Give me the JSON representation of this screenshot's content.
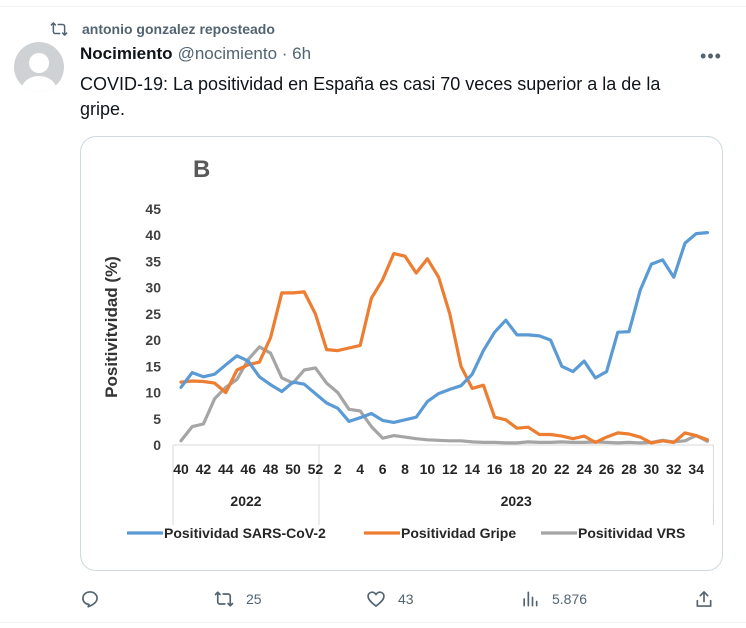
{
  "repost": {
    "label": "antonio gonzalez reposteado",
    "icon": "repost-icon"
  },
  "author": {
    "name": "Nocimiento",
    "handle_time": "@nocimiento · 6h"
  },
  "more_icon": "more-icon",
  "tweet_text": "COVID-19: La positividad en España es casi 70 veces superior a la de la gripe.",
  "actions": {
    "reply": {
      "icon": "reply-icon",
      "count": ""
    },
    "repost": {
      "icon": "repost-icon",
      "count": "25"
    },
    "like": {
      "icon": "heart-icon",
      "count": "43"
    },
    "views": {
      "icon": "views-icon",
      "count": "5.876"
    },
    "share": {
      "icon": "share-icon"
    }
  },
  "colors": {
    "sars": "#5b9bd5",
    "gripe": "#ed7d31",
    "vrs": "#a5a5a5",
    "muted": "#536471"
  },
  "chart_data": {
    "type": "line",
    "panel_label": "B",
    "ylabel": "Positivitvidad (%)",
    "ylim": [
      0,
      45
    ],
    "yticks": [
      "0",
      "5",
      "10",
      "15",
      "20",
      "25",
      "30",
      "35",
      "40",
      "45"
    ],
    "xtick_labels": [
      "40",
      "42",
      "44",
      "46",
      "48",
      "50",
      "52",
      "2",
      "4",
      "6",
      "8",
      "10",
      "12",
      "14",
      "16",
      "18",
      "20",
      "22",
      "24",
      "26",
      "28",
      "30",
      "32",
      "34"
    ],
    "year_groups": [
      {
        "label": "2022",
        "weeks": "40-52"
      },
      {
        "label": "2023",
        "weeks": "1-35"
      }
    ],
    "x": [
      "40",
      "41",
      "42",
      "43",
      "44",
      "45",
      "46",
      "47",
      "48",
      "49",
      "50",
      "51",
      "52",
      "1",
      "2",
      "3",
      "4",
      "5",
      "6",
      "7",
      "8",
      "9",
      "10",
      "11",
      "12",
      "13",
      "14",
      "15",
      "16",
      "17",
      "18",
      "19",
      "20",
      "21",
      "22",
      "23",
      "24",
      "25",
      "26",
      "27",
      "28",
      "29",
      "30",
      "31",
      "32",
      "33",
      "34",
      "35"
    ],
    "series": [
      {
        "name": "Positividad SARS-CoV-2",
        "color": "#5b9bd5",
        "values": [
          11,
          13.8,
          13,
          13.5,
          15.3,
          17,
          16,
          13,
          11.5,
          10.2,
          12,
          11.6,
          9.8,
          8,
          7,
          4.5,
          5.2,
          6,
          4.7,
          4.3,
          4.8,
          5.3,
          8.3,
          9.8,
          10.6,
          11.3,
          13.5,
          18,
          21.5,
          23.8,
          21,
          21,
          20.8,
          20,
          15,
          14,
          16,
          12.8,
          14,
          21.5,
          21.6,
          29.5,
          34.5,
          35.3,
          32,
          38.5,
          40.3,
          40.5
        ]
      },
      {
        "name": "Positividad Gripe",
        "color": "#ed7d31",
        "values": [
          12,
          12.2,
          12.1,
          11.8,
          10,
          14.3,
          15.3,
          15.8,
          20.5,
          29,
          29,
          29.2,
          25,
          18.2,
          18,
          18.5,
          19,
          28,
          31.5,
          36.5,
          36,
          32.8,
          35.5,
          32,
          25,
          15,
          10.8,
          11.4,
          5.3,
          4.8,
          3.2,
          3.4,
          2,
          2,
          1.7,
          1.2,
          1.7,
          0.5,
          1.5,
          2.3,
          2.1,
          1.5,
          0.4,
          0.8,
          0.5,
          2.3,
          1.8,
          1
        ]
      },
      {
        "name": "Positividad VRS",
        "color": "#a5a5a5",
        "values": [
          0.8,
          3.5,
          4,
          8.8,
          11,
          12.5,
          16.3,
          18.7,
          17.5,
          12.8,
          11.8,
          14.3,
          14.7,
          11.8,
          10,
          6.8,
          6.5,
          3.5,
          1.3,
          1.8,
          1.5,
          1.2,
          1,
          0.9,
          0.8,
          0.8,
          0.6,
          0.5,
          0.5,
          0.4,
          0.4,
          0.6,
          0.5,
          0.5,
          0.6,
          0.5,
          0.5,
          0.6,
          0.5,
          0.4,
          0.5,
          0.4,
          0.5,
          0.9,
          0.6,
          0.8,
          1.8,
          0.7
        ]
      }
    ],
    "legend": [
      "Positividad SARS-CoV-2",
      "Positividad Gripe",
      "Positividad VRS"
    ],
    "legend_position": "bottom",
    "grid": false
  }
}
